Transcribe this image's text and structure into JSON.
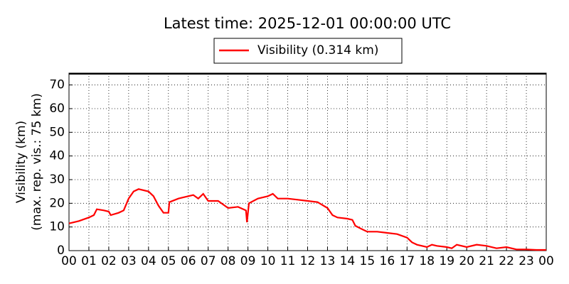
{
  "chart_data": {
    "type": "line",
    "title": "Latest time: 2025-12-01 00:00:00 UTC",
    "ylabel": [
      "Visibility (km)",
      "(max. rep. vis.: 75 km)"
    ],
    "x": [
      0,
      0.5,
      1,
      1.25,
      1.4,
      1.75,
      2,
      2.1,
      2.5,
      2.75,
      3,
      3.25,
      3.5,
      4,
      4.25,
      4.5,
      4.75,
      5,
      5.05,
      5.5,
      6,
      6.25,
      6.5,
      6.75,
      7,
      7.5,
      8,
      8.5,
      8.9,
      8.95,
      9.05,
      9.5,
      10,
      10.25,
      10.5,
      11,
      11.5,
      12,
      12.5,
      13,
      13.25,
      13.5,
      14,
      14.25,
      14.4,
      14.75,
      15,
      15.5,
      16,
      16.5,
      17,
      17.25,
      17.5,
      18,
      18.25,
      18.5,
      19,
      19.25,
      19.5,
      20,
      20.5,
      21,
      21.5,
      22,
      22.5,
      23,
      23.5,
      24
    ],
    "series": [
      {
        "name": "Visibility (0.314 km)",
        "color": "#ff0000",
        "values": [
          11.5,
          12.5,
          14,
          15,
          17.5,
          17,
          16.5,
          15,
          16,
          17,
          22,
          25,
          26,
          25,
          23,
          19,
          16,
          16,
          20.5,
          22,
          23,
          23.5,
          22,
          24,
          21,
          21,
          18,
          18.5,
          17,
          12,
          20,
          22,
          23,
          24,
          22,
          22,
          21.5,
          21,
          20.5,
          18,
          15,
          14,
          13.5,
          13,
          10.5,
          9,
          8,
          8,
          7.5,
          7,
          5.5,
          3.5,
          2.5,
          1.5,
          2.5,
          2,
          1.5,
          1,
          2.5,
          1.5,
          2.5,
          2,
          1,
          1.5,
          0.5,
          0.5,
          0.3,
          0.314
        ]
      }
    ],
    "xlim": [
      0,
      24
    ],
    "ylim": [
      0,
      75
    ],
    "xticks": [
      {
        "value": 0,
        "label": "00"
      },
      {
        "value": 1,
        "label": "01"
      },
      {
        "value": 2,
        "label": "02"
      },
      {
        "value": 3,
        "label": "03"
      },
      {
        "value": 4,
        "label": "04"
      },
      {
        "value": 5,
        "label": "05"
      },
      {
        "value": 6,
        "label": "06"
      },
      {
        "value": 7,
        "label": "07"
      },
      {
        "value": 8,
        "label": "08"
      },
      {
        "value": 9,
        "label": "09"
      },
      {
        "value": 10,
        "label": "10"
      },
      {
        "value": 11,
        "label": "11"
      },
      {
        "value": 12,
        "label": "12"
      },
      {
        "value": 13,
        "label": "13"
      },
      {
        "value": 14,
        "label": "14"
      },
      {
        "value": 15,
        "label": "15"
      },
      {
        "value": 16,
        "label": "16"
      },
      {
        "value": 17,
        "label": "17"
      },
      {
        "value": 18,
        "label": "18"
      },
      {
        "value": 19,
        "label": "19"
      },
      {
        "value": 20,
        "label": "20"
      },
      {
        "value": 21,
        "label": "21"
      },
      {
        "value": 22,
        "label": "22"
      },
      {
        "value": 23,
        "label": "23"
      },
      {
        "value": 24,
        "label": "00"
      }
    ],
    "yticks": [
      0,
      10,
      20,
      30,
      40,
      50,
      60,
      70
    ],
    "grid": true
  }
}
